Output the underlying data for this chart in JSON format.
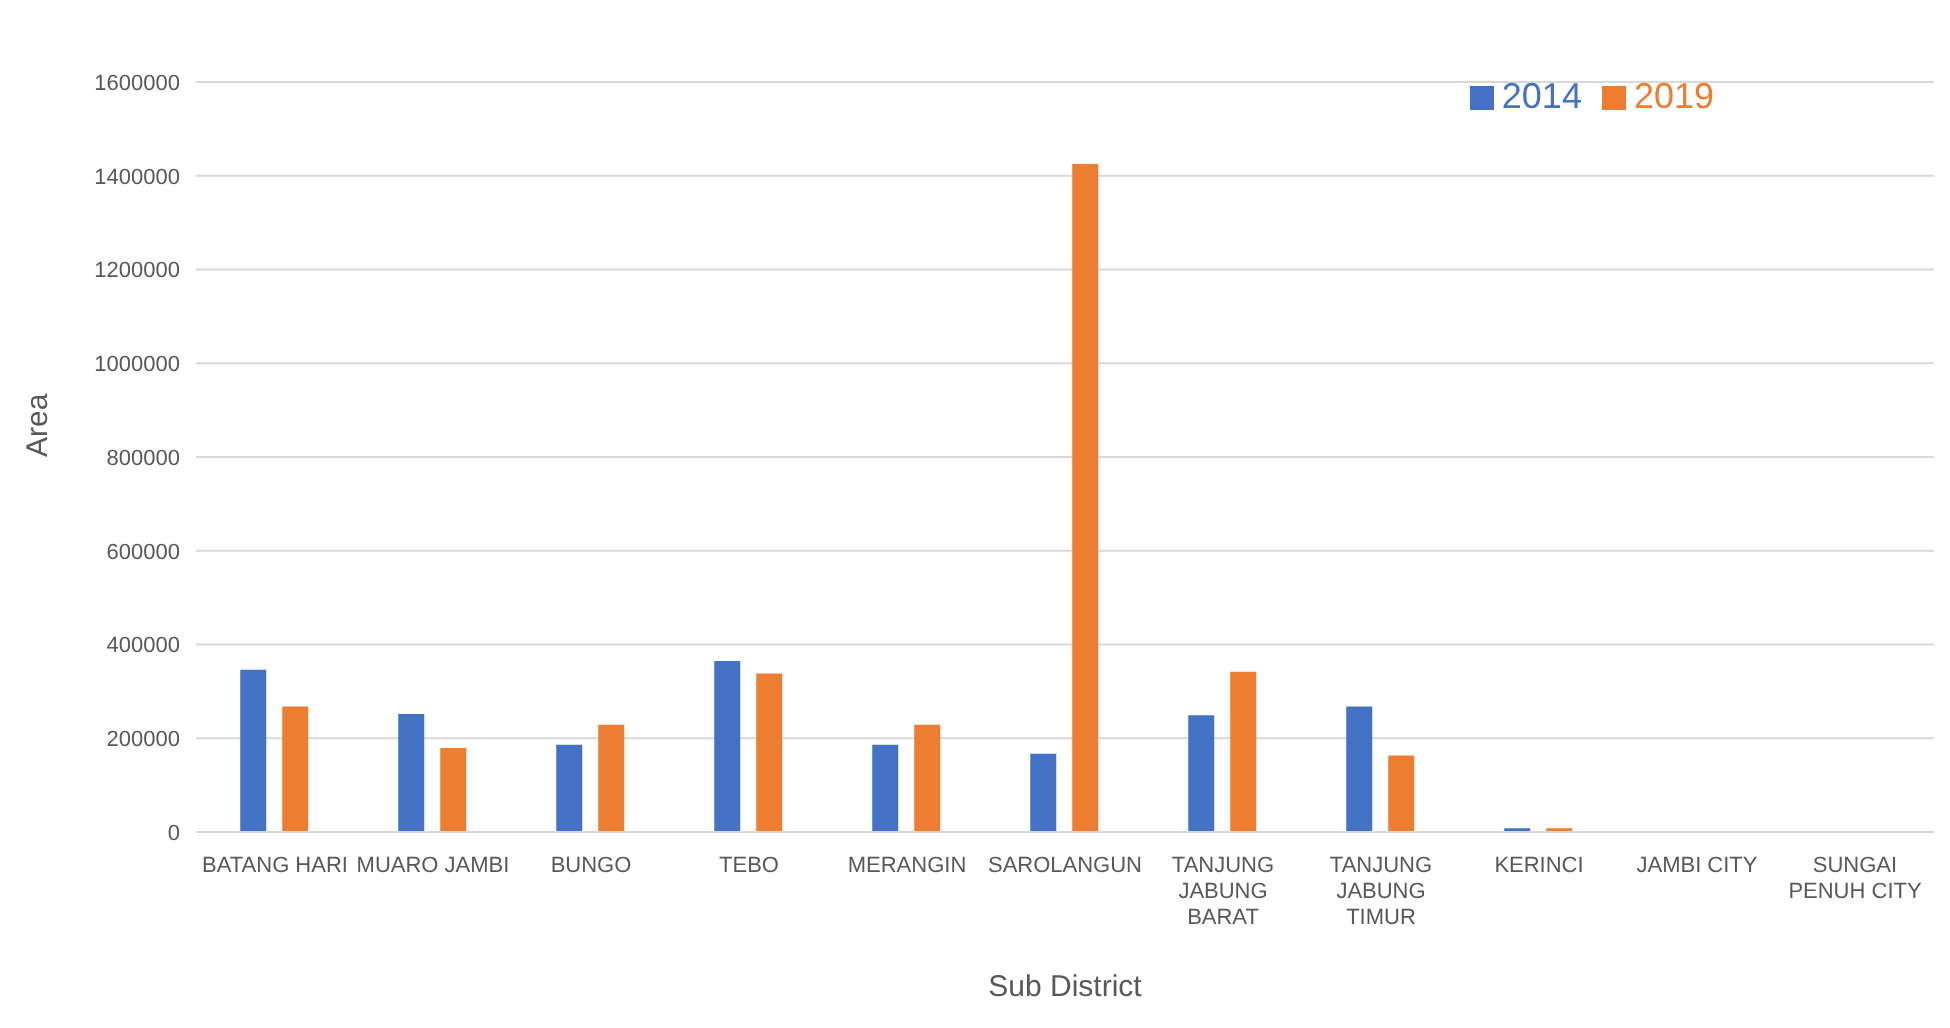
{
  "chart_data": {
    "type": "bar",
    "xlabel": "Sub District",
    "ylabel": "Area",
    "categories": [
      "BATANG HARI",
      "MUARO JAMBI",
      "BUNGO",
      "TEBO",
      "MERANGIN",
      "SAROLANGUN",
      "TANJUNG JABUNG BARAT",
      "TANJUNG JABUNG TIMUR",
      "KERINCI",
      "JAMBI CITY",
      "SUNGAI PENUH CITY"
    ],
    "series": [
      {
        "name": "2014",
        "color": "#4472c4",
        "values": [
          346000,
          252000,
          186000,
          365000,
          186000,
          167000,
          249000,
          268000,
          8000,
          0,
          0
        ]
      },
      {
        "name": "2019",
        "color": "#ed7d31",
        "values": [
          268000,
          179000,
          229000,
          338000,
          229000,
          1425000,
          342000,
          163000,
          8000,
          0,
          0
        ]
      }
    ],
    "ylim": [
      0,
      1600000
    ],
    "yticks": [
      0,
      200000,
      400000,
      600000,
      800000,
      1000000,
      1200000,
      1400000,
      1600000
    ],
    "grid": "y",
    "legend": "top right"
  }
}
